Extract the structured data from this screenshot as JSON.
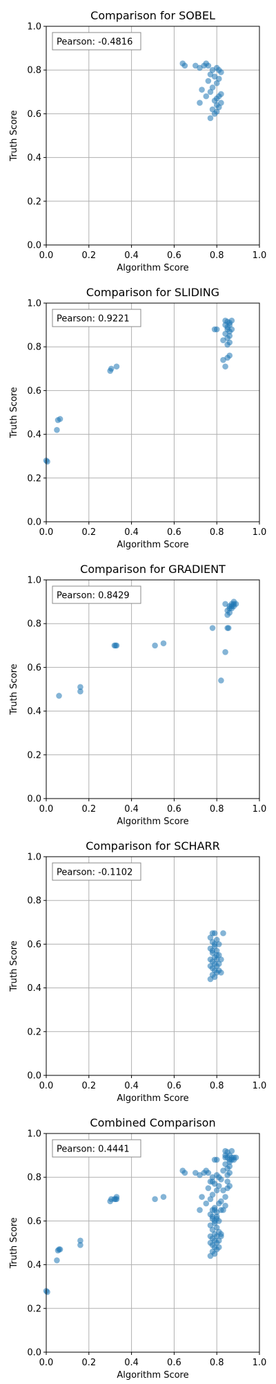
{
  "style": {
    "point_color": "#1f77b4",
    "grid_color": "#b0b0b0"
  },
  "chart_data": [
    {
      "type": "scatter",
      "title": "Comparison for SOBEL",
      "xlabel": "Algorithm Score",
      "ylabel": "Truth Score",
      "xlim": [
        0,
        1
      ],
      "ylim": [
        0,
        1
      ],
      "grid": true,
      "xticks": [
        "0.0",
        "0.2",
        "0.4",
        "0.6",
        "0.8",
        "1.0"
      ],
      "yticks": [
        "0.0",
        "0.2",
        "0.4",
        "0.6",
        "0.8",
        "1.0"
      ],
      "annotation": "Pearson: -0.4816",
      "points": [
        [
          0.64,
          0.83
        ],
        [
          0.65,
          0.82
        ],
        [
          0.7,
          0.82
        ],
        [
          0.72,
          0.81
        ],
        [
          0.74,
          0.82
        ],
        [
          0.75,
          0.83
        ],
        [
          0.76,
          0.82
        ],
        [
          0.78,
          0.8
        ],
        [
          0.8,
          0.81
        ],
        [
          0.81,
          0.8
        ],
        [
          0.82,
          0.79
        ],
        [
          0.77,
          0.78
        ],
        [
          0.79,
          0.77
        ],
        [
          0.81,
          0.76
        ],
        [
          0.76,
          0.75
        ],
        [
          0.8,
          0.74
        ],
        [
          0.78,
          0.72
        ],
        [
          0.73,
          0.71
        ],
        [
          0.77,
          0.7
        ],
        [
          0.82,
          0.69
        ],
        [
          0.81,
          0.68
        ],
        [
          0.75,
          0.68
        ],
        [
          0.79,
          0.66
        ],
        [
          0.82,
          0.65
        ],
        [
          0.8,
          0.64
        ],
        [
          0.72,
          0.65
        ],
        [
          0.78,
          0.62
        ],
        [
          0.8,
          0.61
        ],
        [
          0.79,
          0.6
        ],
        [
          0.77,
          0.58
        ],
        [
          0.81,
          0.63
        ],
        [
          0.8,
          0.67
        ]
      ]
    },
    {
      "type": "scatter",
      "title": "Comparison for SLIDING",
      "xlabel": "Algorithm Score",
      "ylabel": "Truth Score",
      "xlim": [
        0,
        1
      ],
      "ylim": [
        0,
        1
      ],
      "grid": true,
      "xticks": [
        "0.0",
        "0.2",
        "0.4",
        "0.6",
        "0.8",
        "1.0"
      ],
      "yticks": [
        "0.0",
        "0.2",
        "0.4",
        "0.6",
        "0.8",
        "1.0"
      ],
      "annotation": "Pearson: 0.9221",
      "points": [
        [
          0.0,
          0.28
        ],
        [
          0.005,
          0.275
        ],
        [
          0.05,
          0.42
        ],
        [
          0.055,
          0.465
        ],
        [
          0.065,
          0.47
        ],
        [
          0.3,
          0.69
        ],
        [
          0.305,
          0.7
        ],
        [
          0.33,
          0.71
        ],
        [
          0.79,
          0.88
        ],
        [
          0.8,
          0.88
        ],
        [
          0.84,
          0.92
        ],
        [
          0.85,
          0.915
        ],
        [
          0.87,
          0.92
        ],
        [
          0.84,
          0.9
        ],
        [
          0.86,
          0.9
        ],
        [
          0.85,
          0.89
        ],
        [
          0.87,
          0.88
        ],
        [
          0.86,
          0.87
        ],
        [
          0.84,
          0.86
        ],
        [
          0.86,
          0.85
        ],
        [
          0.85,
          0.84
        ],
        [
          0.83,
          0.83
        ],
        [
          0.86,
          0.82
        ],
        [
          0.85,
          0.81
        ],
        [
          0.86,
          0.76
        ],
        [
          0.85,
          0.75
        ],
        [
          0.83,
          0.74
        ],
        [
          0.84,
          0.71
        ],
        [
          0.85,
          0.88
        ],
        [
          0.86,
          0.91
        ]
      ]
    },
    {
      "type": "scatter",
      "title": "Comparison for GRADIENT",
      "xlabel": "Algorithm Score",
      "ylabel": "Truth Score",
      "xlim": [
        0,
        1
      ],
      "ylim": [
        0,
        1
      ],
      "grid": true,
      "xticks": [
        "0.0",
        "0.2",
        "0.4",
        "0.6",
        "0.8",
        "1.0"
      ],
      "yticks": [
        "0.0",
        "0.2",
        "0.4",
        "0.6",
        "0.8",
        "1.0"
      ],
      "annotation": "Pearson: 0.8429",
      "points": [
        [
          0.06,
          0.47
        ],
        [
          0.16,
          0.49
        ],
        [
          0.16,
          0.51
        ],
        [
          0.32,
          0.7
        ],
        [
          0.325,
          0.7
        ],
        [
          0.33,
          0.7
        ],
        [
          0.51,
          0.7
        ],
        [
          0.55,
          0.71
        ],
        [
          0.78,
          0.78
        ],
        [
          0.82,
          0.54
        ],
        [
          0.84,
          0.67
        ],
        [
          0.85,
          0.78
        ],
        [
          0.855,
          0.78
        ],
        [
          0.84,
          0.89
        ],
        [
          0.86,
          0.88
        ],
        [
          0.87,
          0.89
        ],
        [
          0.88,
          0.89
        ],
        [
          0.89,
          0.89
        ],
        [
          0.88,
          0.88
        ],
        [
          0.86,
          0.87
        ],
        [
          0.85,
          0.86
        ],
        [
          0.87,
          0.87
        ],
        [
          0.86,
          0.85
        ],
        [
          0.85,
          0.84
        ],
        [
          0.88,
          0.9
        ],
        [
          0.87,
          0.88
        ]
      ]
    },
    {
      "type": "scatter",
      "title": "Comparison for SCHARR",
      "xlabel": "Algorithm Score",
      "ylabel": "Truth Score",
      "xlim": [
        0,
        1
      ],
      "ylim": [
        0,
        1
      ],
      "grid": true,
      "xticks": [
        "0.0",
        "0.2",
        "0.4",
        "0.6",
        "0.8",
        "1.0"
      ],
      "yticks": [
        "0.0",
        "0.2",
        "0.4",
        "0.6",
        "0.8",
        "1.0"
      ],
      "annotation": "Pearson: -0.1102",
      "points": [
        [
          0.78,
          0.65
        ],
        [
          0.79,
          0.65
        ],
        [
          0.83,
          0.65
        ],
        [
          0.77,
          0.63
        ],
        [
          0.8,
          0.62
        ],
        [
          0.78,
          0.61
        ],
        [
          0.81,
          0.6
        ],
        [
          0.79,
          0.59
        ],
        [
          0.77,
          0.58
        ],
        [
          0.8,
          0.57
        ],
        [
          0.78,
          0.56
        ],
        [
          0.81,
          0.55
        ],
        [
          0.79,
          0.54
        ],
        [
          0.77,
          0.53
        ],
        [
          0.8,
          0.53
        ],
        [
          0.82,
          0.53
        ],
        [
          0.78,
          0.52
        ],
        [
          0.79,
          0.51
        ],
        [
          0.81,
          0.51
        ],
        [
          0.77,
          0.5
        ],
        [
          0.8,
          0.5
        ],
        [
          0.78,
          0.49
        ],
        [
          0.79,
          0.48
        ],
        [
          0.81,
          0.48
        ],
        [
          0.8,
          0.47
        ],
        [
          0.78,
          0.46
        ],
        [
          0.79,
          0.45
        ],
        [
          0.77,
          0.44
        ],
        [
          0.82,
          0.47
        ],
        [
          0.8,
          0.55
        ],
        [
          0.78,
          0.57
        ],
        [
          0.79,
          0.6
        ]
      ]
    },
    {
      "type": "scatter",
      "title": "Combined Comparison",
      "xlabel": "Algorithm Score",
      "ylabel": "Truth Score",
      "xlim": [
        0,
        1
      ],
      "ylim": [
        0,
        1
      ],
      "grid": true,
      "xticks": [
        "0.0",
        "0.2",
        "0.4",
        "0.6",
        "0.8",
        "1.0"
      ],
      "yticks": [
        "0.0",
        "0.2",
        "0.4",
        "0.6",
        "0.8",
        "1.0"
      ],
      "annotation": "Pearson: 0.4441",
      "points": [
        [
          0.0,
          0.28
        ],
        [
          0.005,
          0.275
        ],
        [
          0.05,
          0.42
        ],
        [
          0.055,
          0.465
        ],
        [
          0.065,
          0.47
        ],
        [
          0.06,
          0.47
        ],
        [
          0.16,
          0.49
        ],
        [
          0.16,
          0.51
        ],
        [
          0.3,
          0.69
        ],
        [
          0.305,
          0.7
        ],
        [
          0.32,
          0.7
        ],
        [
          0.325,
          0.7
        ],
        [
          0.33,
          0.7
        ],
        [
          0.33,
          0.71
        ],
        [
          0.51,
          0.7
        ],
        [
          0.55,
          0.71
        ],
        [
          0.64,
          0.83
        ],
        [
          0.65,
          0.82
        ],
        [
          0.7,
          0.82
        ],
        [
          0.72,
          0.81
        ],
        [
          0.74,
          0.82
        ],
        [
          0.75,
          0.83
        ],
        [
          0.76,
          0.82
        ],
        [
          0.78,
          0.8
        ],
        [
          0.8,
          0.81
        ],
        [
          0.81,
          0.8
        ],
        [
          0.82,
          0.79
        ],
        [
          0.77,
          0.78
        ],
        [
          0.79,
          0.77
        ],
        [
          0.81,
          0.76
        ],
        [
          0.76,
          0.75
        ],
        [
          0.8,
          0.74
        ],
        [
          0.78,
          0.72
        ],
        [
          0.73,
          0.71
        ],
        [
          0.77,
          0.7
        ],
        [
          0.82,
          0.69
        ],
        [
          0.81,
          0.68
        ],
        [
          0.75,
          0.68
        ],
        [
          0.79,
          0.66
        ],
        [
          0.82,
          0.65
        ],
        [
          0.8,
          0.64
        ],
        [
          0.72,
          0.65
        ],
        [
          0.78,
          0.62
        ],
        [
          0.8,
          0.61
        ],
        [
          0.79,
          0.6
        ],
        [
          0.77,
          0.58
        ],
        [
          0.79,
          0.88
        ],
        [
          0.8,
          0.88
        ],
        [
          0.84,
          0.92
        ],
        [
          0.85,
          0.915
        ],
        [
          0.87,
          0.92
        ],
        [
          0.84,
          0.9
        ],
        [
          0.86,
          0.9
        ],
        [
          0.85,
          0.89
        ],
        [
          0.87,
          0.88
        ],
        [
          0.86,
          0.87
        ],
        [
          0.84,
          0.86
        ],
        [
          0.86,
          0.85
        ],
        [
          0.85,
          0.84
        ],
        [
          0.83,
          0.83
        ],
        [
          0.86,
          0.82
        ],
        [
          0.85,
          0.81
        ],
        [
          0.86,
          0.76
        ],
        [
          0.85,
          0.75
        ],
        [
          0.83,
          0.74
        ],
        [
          0.84,
          0.71
        ],
        [
          0.78,
          0.78
        ],
        [
          0.82,
          0.54
        ],
        [
          0.84,
          0.67
        ],
        [
          0.85,
          0.78
        ],
        [
          0.84,
          0.89
        ],
        [
          0.86,
          0.88
        ],
        [
          0.87,
          0.89
        ],
        [
          0.88,
          0.89
        ],
        [
          0.89,
          0.89
        ],
        [
          0.88,
          0.88
        ],
        [
          0.78,
          0.65
        ],
        [
          0.79,
          0.65
        ],
        [
          0.83,
          0.65
        ],
        [
          0.77,
          0.63
        ],
        [
          0.8,
          0.62
        ],
        [
          0.78,
          0.61
        ],
        [
          0.81,
          0.6
        ],
        [
          0.79,
          0.59
        ],
        [
          0.8,
          0.57
        ],
        [
          0.78,
          0.56
        ],
        [
          0.81,
          0.55
        ],
        [
          0.79,
          0.54
        ],
        [
          0.77,
          0.53
        ],
        [
          0.8,
          0.53
        ],
        [
          0.82,
          0.53
        ],
        [
          0.78,
          0.52
        ],
        [
          0.79,
          0.51
        ],
        [
          0.81,
          0.51
        ],
        [
          0.77,
          0.5
        ],
        [
          0.8,
          0.5
        ],
        [
          0.78,
          0.49
        ],
        [
          0.79,
          0.48
        ],
        [
          0.81,
          0.48
        ],
        [
          0.8,
          0.47
        ],
        [
          0.78,
          0.46
        ],
        [
          0.79,
          0.45
        ],
        [
          0.77,
          0.44
        ]
      ]
    }
  ]
}
